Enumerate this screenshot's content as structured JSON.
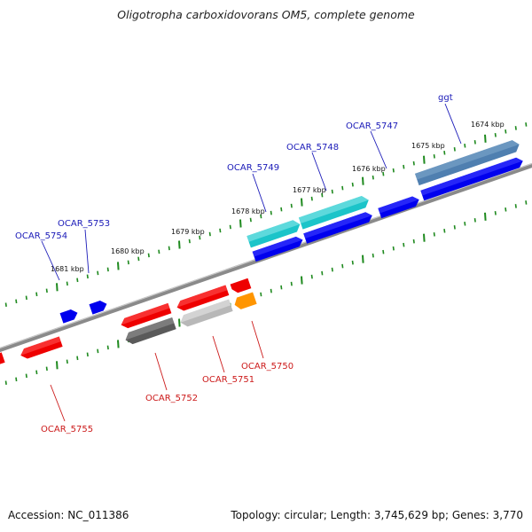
{
  "title": "Oligotropha carboxidovorans OM5, complete genome",
  "footer": {
    "accession": "Accession: NC_011386",
    "summary": "Topology: circular; Length: 3,745,629 bp; Genes: 3,770"
  },
  "scale": {
    "tick_labels": [
      "1674 kbp",
      "1675 kbp",
      "1676 kbp",
      "1677 kbp",
      "1678 kbp",
      "1679 kbp",
      "1680 kbp",
      "1681 kbp"
    ]
  },
  "colors": {
    "backbone": "#8a8a8a",
    "tick": "#1f8a1f",
    "forward_label": "#1a1ab8",
    "reverse_label": "#cc1a1a",
    "cds": "#0000ee",
    "gene_cyan": "#1bc4c9",
    "gene_steel": "#4f7fb0",
    "gene_red": "#ee0000",
    "gene_gray_dark": "#5a5a5a",
    "gene_gray_light": "#b8b8b8",
    "gene_orange": "#ff9500"
  },
  "forward_labels": [
    "ggt",
    "OCAR_5747",
    "OCAR_5748",
    "OCAR_5749",
    "OCAR_5753",
    "OCAR_5754"
  ],
  "reverse_labels": [
    "OCAR_5750",
    "OCAR_5751",
    "OCAR_5752",
    "OCAR_5755"
  ]
}
